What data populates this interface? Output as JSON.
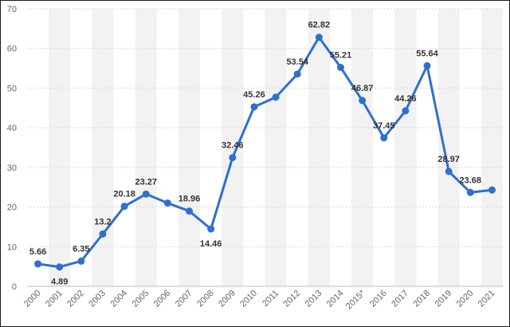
{
  "chart_data": {
    "type": "line",
    "title": "",
    "xlabel": "",
    "ylabel": "",
    "ylim": [
      0,
      70
    ],
    "yticks": [
      0,
      10,
      20,
      30,
      40,
      50,
      60,
      70
    ],
    "grid": "horizontal",
    "alternating_column_bands": true,
    "line_color": "#2f6fd0",
    "categories": [
      "2000",
      "2001",
      "2002",
      "2003",
      "2004",
      "2005",
      "2006",
      "2007",
      "2008",
      "2009",
      "2010",
      "2011",
      "2012",
      "2013",
      "2014",
      "2015*",
      "2016",
      "2017",
      "2018",
      "2019",
      "2020",
      "2021"
    ],
    "values": [
      5.66,
      4.89,
      6.35,
      13.2,
      20.18,
      23.27,
      21.0,
      18.96,
      14.46,
      32.46,
      45.26,
      47.7,
      53.54,
      62.82,
      55.21,
      46.87,
      37.45,
      44.26,
      55.64,
      28.97,
      23.68,
      24.3
    ],
    "data_labels": [
      "5.66",
      "4.89",
      "6.35",
      "13.2",
      "20.18",
      "23.27",
      "",
      "18.96",
      "14.46",
      "32.46",
      "45.26",
      "",
      "53.54",
      "62.82",
      "55.21",
      "46.87",
      "37.45",
      "44.26",
      "55.64",
      "28.97",
      "23.68",
      ""
    ]
  }
}
